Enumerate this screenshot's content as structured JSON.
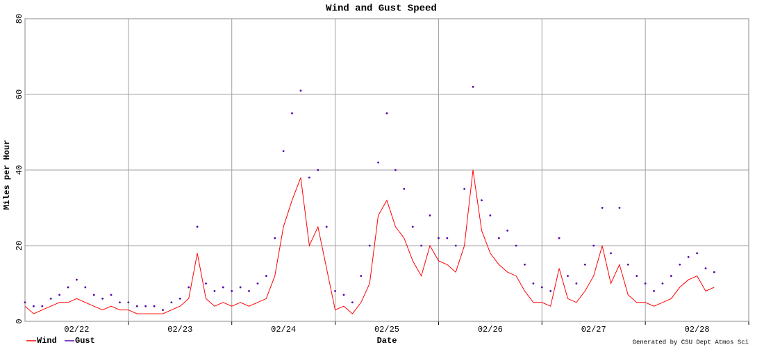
{
  "chart_data": {
    "type": "line",
    "title": "Wind and Gust Speed",
    "xlabel": "Date",
    "ylabel": "Miles per Hour",
    "footer": "Generated by CSU Dept Atmos Sci",
    "xlim": [
      0,
      168
    ],
    "xticks": [
      {
        "value": 12,
        "label": "02/22"
      },
      {
        "value": 36,
        "label": "02/23"
      },
      {
        "value": 60,
        "label": "02/24"
      },
      {
        "value": 84,
        "label": "02/25"
      },
      {
        "value": 108,
        "label": "02/26"
      },
      {
        "value": 132,
        "label": "02/27"
      },
      {
        "value": 156,
        "label": "02/28"
      }
    ],
    "xgrid": [
      24,
      48,
      72,
      96,
      120,
      144,
      168
    ],
    "ylim": [
      0,
      80
    ],
    "yticks": [
      0,
      20,
      40,
      60,
      80
    ],
    "grid": true,
    "legend": "bottom-left",
    "x": [
      0,
      2,
      4,
      6,
      8,
      10,
      12,
      14,
      16,
      18,
      20,
      22,
      24,
      26,
      28,
      30,
      32,
      34,
      36,
      38,
      40,
      42,
      44,
      46,
      48,
      50,
      52,
      54,
      56,
      58,
      60,
      62,
      64,
      66,
      68,
      70,
      72,
      74,
      76,
      78,
      80,
      82,
      84,
      86,
      88,
      90,
      92,
      94,
      96,
      98,
      100,
      102,
      104,
      106,
      108,
      110,
      112,
      114,
      116,
      118,
      120,
      122,
      124,
      126,
      128,
      130,
      132,
      134,
      136,
      138,
      140,
      142,
      144,
      146,
      148,
      150,
      152,
      154,
      156,
      158,
      160
    ],
    "series": [
      {
        "name": "Wind",
        "color": "#ff0000",
        "style": "line",
        "values": [
          4,
          2,
          3,
          4,
          5,
          5,
          6,
          5,
          4,
          3,
          4,
          3,
          3,
          2,
          2,
          2,
          2,
          3,
          4,
          6,
          18,
          6,
          4,
          5,
          4,
          5,
          4,
          5,
          6,
          12,
          25,
          32,
          38,
          20,
          25,
          14,
          3,
          4,
          2,
          5,
          10,
          28,
          32,
          25,
          22,
          16,
          12,
          20,
          16,
          15,
          13,
          20,
          40,
          24,
          18,
          15,
          13,
          12,
          8,
          5,
          5,
          4,
          14,
          6,
          5,
          8,
          12,
          20,
          10,
          15,
          7,
          5,
          5,
          4,
          5,
          6,
          9,
          11,
          12,
          8,
          9
        ]
      },
      {
        "name": "Gust",
        "color": "#5500aa",
        "style": "points",
        "values": [
          5,
          4,
          4,
          6,
          7,
          9,
          11,
          9,
          7,
          6,
          7,
          5,
          5,
          4,
          4,
          4,
          3,
          5,
          6,
          9,
          25,
          10,
          8,
          9,
          8,
          9,
          8,
          10,
          12,
          22,
          45,
          55,
          61,
          38,
          40,
          25,
          8,
          7,
          5,
          12,
          20,
          42,
          55,
          40,
          35,
          25,
          20,
          28,
          22,
          22,
          20,
          35,
          62,
          32,
          28,
          22,
          24,
          20,
          15,
          10,
          9,
          8,
          22,
          12,
          10,
          15,
          20,
          30,
          18,
          30,
          15,
          12,
          10,
          8,
          10,
          12,
          15,
          17,
          18,
          14,
          13
        ]
      }
    ]
  }
}
